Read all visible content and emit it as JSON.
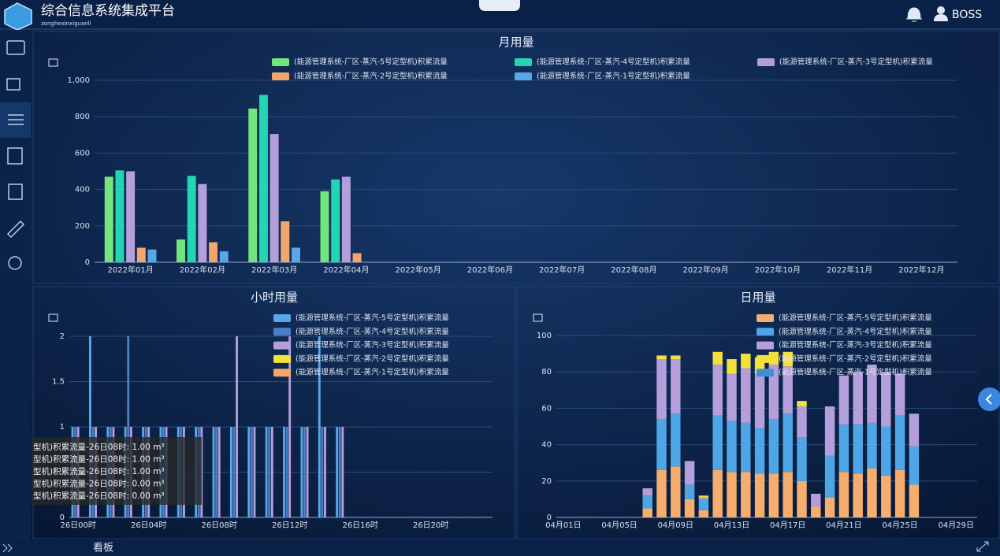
{
  "header": {
    "title": "综合信息系统集成平台",
    "subtitle": "zonghexinxiguanli",
    "user": "BOSS"
  },
  "footer": {
    "tab": "看板"
  },
  "tooltip": [
    "型机)积累流量-26日08时: 1.00 m³",
    "型机)积累流量-26日08时: 1.00 m³",
    "型机)积累流量-26日08时: 1.00 m³",
    "型机)积累流量-26日08时: 0.00 m³",
    "型机)积累流量-26日08时: 0.00 m³"
  ],
  "chart_data": [
    {
      "type": "bar",
      "title": "月用量",
      "categories": [
        "2022年01月",
        "2022年02月",
        "2022年03月",
        "2022年04月",
        "2022年05月",
        "2022年06月",
        "2022年07月",
        "2022年08月",
        "2022年09月",
        "2022年10月",
        "2022年11月",
        "2022年12月"
      ],
      "series": [
        {
          "name": "(能源管理系统-厂区-蒸汽-5号定型机)积累流量",
          "color": "#72e67a",
          "values": [
            470,
            125,
            845,
            390,
            null,
            null,
            null,
            null,
            null,
            null,
            null,
            null
          ]
        },
        {
          "name": "(能源管理系统-厂区-蒸汽-4号定型机)积累流量",
          "color": "#22d6b4",
          "values": [
            505,
            475,
            920,
            455,
            null,
            null,
            null,
            null,
            null,
            null,
            null,
            null
          ]
        },
        {
          "name": "(能源管理系统-厂区-蒸汽-3号定型机)积累流量",
          "color": "#b49fdc",
          "values": [
            500,
            430,
            705,
            470,
            null,
            null,
            null,
            null,
            null,
            null,
            null,
            null
          ]
        },
        {
          "name": "(能源管理系统-厂区-蒸汽-2号定型机)积累流量",
          "color": "#f4a66a",
          "values": [
            80,
            110,
            225,
            50,
            null,
            null,
            null,
            null,
            null,
            null,
            null,
            null
          ]
        },
        {
          "name": "(能源管理系统-厂区-蒸汽-1号定型机)积累流量",
          "color": "#58a8e8",
          "values": [
            70,
            60,
            80,
            null,
            null,
            null,
            null,
            null,
            null,
            null,
            null,
            null
          ]
        }
      ],
      "ylim": [
        0,
        1000
      ],
      "yticks": [
        0,
        200,
        400,
        600,
        800,
        {
          "value": 1000,
          "label": "1,000"
        }
      ],
      "grid": true
    },
    {
      "type": "bar",
      "title": "小时用量",
      "categories": [
        "26日00时",
        null,
        null,
        null,
        "26日04时",
        null,
        null,
        null,
        "26日08时",
        null,
        null,
        null,
        "26日12时",
        null,
        null,
        null,
        "26日16时",
        null,
        null,
        null,
        "26日20时",
        null,
        null,
        null
      ],
      "series": [
        {
          "name": "(能源管理系统-厂区-蒸汽-5号定型机)积累流量",
          "color": "#58a8e8",
          "values": [
            1,
            2,
            1,
            1,
            1,
            1,
            1,
            1,
            1,
            1,
            1,
            1,
            1,
            1,
            2,
            1,
            null,
            null,
            null,
            null,
            null,
            null,
            null,
            null
          ]
        },
        {
          "name": "(能源管理系统-厂区-蒸汽-4号定型机)积累流量",
          "color": "#4a7fc4",
          "values": [
            1,
            1,
            1,
            2,
            1,
            1,
            1,
            1,
            1,
            1,
            1,
            1,
            1,
            1,
            1,
            1,
            null,
            null,
            null,
            null,
            null,
            null,
            null,
            null
          ]
        },
        {
          "name": "(能源管理系统-厂区-蒸汽-3号定型机)积累流量",
          "color": "#b49fdc",
          "values": [
            1,
            1,
            1,
            1,
            1,
            1,
            1,
            1,
            1,
            2,
            1,
            1,
            2,
            1,
            1,
            1,
            null,
            null,
            null,
            null,
            null,
            null,
            null,
            null
          ]
        },
        {
          "name": "(能源管理系统-厂区-蒸汽-2号定型机)积累流量",
          "color": "#f2e23a",
          "values": [
            0,
            0,
            0,
            0,
            0,
            0,
            0,
            0,
            0,
            0,
            0,
            0,
            0,
            0,
            0,
            0,
            null,
            null,
            null,
            null,
            null,
            null,
            null,
            null
          ]
        },
        {
          "name": "(能源管理系统-厂区-蒸汽-1号定型机)积累流量",
          "color": "#f4a66a",
          "values": [
            0,
            0,
            0,
            0,
            0,
            0,
            0,
            0,
            0,
            0,
            0,
            0,
            0,
            0,
            0,
            0,
            null,
            null,
            null,
            null,
            null,
            null,
            null,
            null
          ]
        }
      ],
      "ylim": [
        0,
        2
      ],
      "yticks": [
        0,
        0.5,
        1,
        1.5,
        2
      ],
      "grid": true
    },
    {
      "type": "bar",
      "stacked": true,
      "title": "日用量",
      "categories": [
        "04月01日",
        null,
        null,
        null,
        "04月05日",
        null,
        null,
        null,
        "04月09日",
        null,
        null,
        null,
        "04月13日",
        null,
        null,
        null,
        "04月17日",
        null,
        null,
        null,
        "04月21日",
        null,
        null,
        null,
        "04月25日",
        null,
        null,
        null,
        "04月29日",
        null
      ],
      "series": [
        {
          "name": "(能源管理系统-厂区-蒸汽-5号定型机)积累流量",
          "color": "#f6ad70",
          "values": [
            null,
            null,
            null,
            null,
            null,
            null,
            5,
            26,
            28,
            10,
            4,
            26,
            25,
            25,
            24,
            24,
            25,
            20,
            6,
            11,
            25,
            24,
            27,
            23,
            26,
            18,
            null,
            null,
            null,
            null
          ]
        },
        {
          "name": "(能源管理系统-厂区-蒸汽-4号定型机)积累流量",
          "color": "#4ea6e6",
          "values": [
            null,
            null,
            null,
            null,
            null,
            null,
            7,
            28,
            29,
            8,
            6,
            30,
            28,
            27,
            25,
            30,
            32,
            24,
            0,
            23,
            26,
            27,
            25,
            27,
            30,
            21,
            null,
            null,
            null,
            null
          ]
        },
        {
          "name": "(能源管理系统-厂区-蒸汽-3号定型机)积累流量",
          "color": "#b49fdc",
          "values": [
            null,
            null,
            null,
            null,
            null,
            null,
            4,
            33,
            30,
            13,
            1,
            28,
            26,
            30,
            30,
            30,
            26,
            17,
            7,
            27,
            27,
            29,
            32,
            30,
            23,
            18,
            null,
            null,
            null,
            null
          ]
        },
        {
          "name": "(能源管理系统-厂区-蒸汽-2号定型机)积累流量",
          "color": "#f4e03a",
          "values": [
            null,
            null,
            null,
            null,
            null,
            null,
            0,
            2,
            2,
            0,
            1,
            7,
            8,
            8,
            9,
            7,
            8,
            3,
            0,
            0,
            0,
            0,
            0,
            0,
            0,
            0,
            null,
            null,
            null,
            null
          ]
        },
        {
          "name": "(能源管理系统-厂区-蒸汽-1号定型机)积累流量",
          "color": "#3f8fd8",
          "values": [
            null,
            null,
            null,
            null,
            null,
            null,
            0,
            0,
            0,
            0,
            0,
            0,
            0,
            0,
            0,
            0,
            0,
            0,
            0,
            0,
            0,
            0,
            0,
            0,
            0,
            0,
            null,
            null,
            null,
            null
          ]
        }
      ],
      "ylim": [
        0,
        100
      ],
      "yticks": [
        0,
        20,
        40,
        60,
        80,
        100
      ],
      "grid": true
    }
  ]
}
